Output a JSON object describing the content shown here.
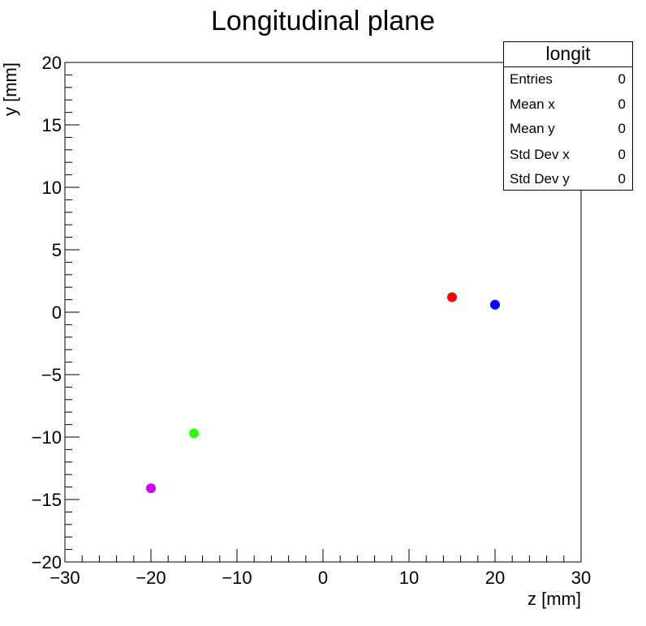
{
  "chart_data": {
    "type": "scatter",
    "title": "Longitudinal plane",
    "xlabel": "z [mm]",
    "ylabel": "y [mm]",
    "xlim": [
      -30,
      30
    ],
    "ylim": [
      -20,
      20
    ],
    "x_ticks": [
      -30,
      -20,
      -10,
      0,
      10,
      20,
      30
    ],
    "y_ticks": [
      -20,
      -15,
      -10,
      -5,
      0,
      5,
      10,
      15,
      20
    ],
    "x_tick_labels": [
      "−30",
      "−20",
      "−10",
      "0",
      "10",
      "20",
      "30"
    ],
    "y_tick_labels": [
      "−20",
      "−15",
      "−10",
      "−5",
      "0",
      "5",
      "10",
      "15",
      "20"
    ],
    "grid": false,
    "points": [
      {
        "x": 15,
        "y": 1.2,
        "color": "#ff0000"
      },
      {
        "x": 20,
        "y": 0.6,
        "color": "#0000ff"
      },
      {
        "x": -15,
        "y": -9.7,
        "color": "#33ff00"
      },
      {
        "x": -20,
        "y": -14.1,
        "color": "#cc00ff"
      }
    ]
  },
  "stats_box": {
    "name": "longit",
    "rows": [
      {
        "label": "Entries",
        "value": "0"
      },
      {
        "label": "Mean x",
        "value": "0"
      },
      {
        "label": "Mean y",
        "value": "0"
      },
      {
        "label": "Std Dev x",
        "value": "0"
      },
      {
        "label": "Std Dev y",
        "value": "0"
      }
    ]
  }
}
